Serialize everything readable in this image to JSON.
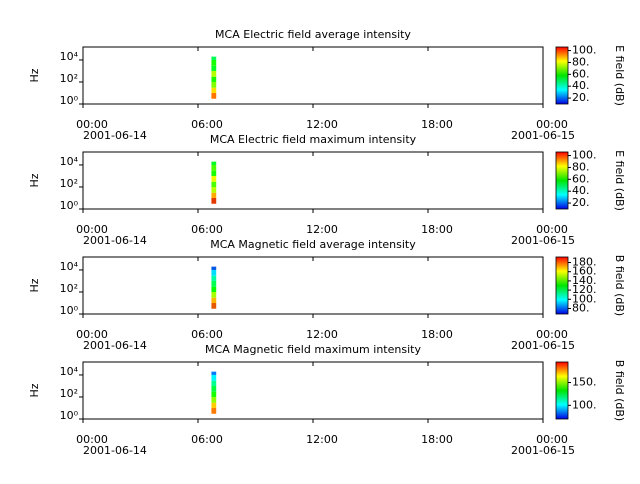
{
  "chart_data": [
    {
      "type": "spectrogram",
      "title": "MCA  Electric field average intensity",
      "ylabel": "Hz",
      "colorbar_label": "E field (dB)",
      "colormap": "rainbow",
      "log_y": true,
      "xlim": [
        0,
        24
      ],
      "xticks": [
        {
          "value": 0,
          "label": "00:00"
        },
        {
          "value": 6,
          "label": "06:00"
        },
        {
          "value": 12,
          "label": "12:00"
        },
        {
          "value": 18,
          "label": "18:00"
        },
        {
          "value": 24,
          "label": "00:00"
        }
      ],
      "x_date_labels": [
        {
          "value": 0,
          "label": "2001-06-14"
        },
        {
          "value": 24,
          "label": "2001-06-15"
        }
      ],
      "ylim": [
        1,
        150000
      ],
      "yticks": [
        {
          "value": 1,
          "label": "10⁰"
        },
        {
          "value": 100,
          "label": "10²"
        },
        {
          "value": 10000,
          "label": "10⁴"
        }
      ],
      "clim": [
        10,
        106
      ],
      "cticks": [
        {
          "value": 20,
          "label": "20."
        },
        {
          "value": 40,
          "label": "40."
        },
        {
          "value": 60,
          "label": "60."
        },
        {
          "value": 80,
          "label": "80."
        },
        {
          "value": 100,
          "label": "100."
        }
      ],
      "time_bins": [
        6.7,
        6.95
      ],
      "freq_bins": [
        3,
        10,
        30,
        100,
        300,
        1000,
        3000,
        10000,
        20000
      ],
      "values": [
        95,
        85,
        70,
        60,
        75,
        55,
        60,
        50
      ]
    },
    {
      "type": "spectrogram",
      "title": "MCA  Electric field maximum intensity",
      "ylabel": "Hz",
      "colorbar_label": "E field (dB)",
      "colormap": "rainbow",
      "log_y": true,
      "xlim": [
        0,
        24
      ],
      "xticks": [
        {
          "value": 0,
          "label": "00:00"
        },
        {
          "value": 6,
          "label": "06:00"
        },
        {
          "value": 12,
          "label": "12:00"
        },
        {
          "value": 18,
          "label": "18:00"
        },
        {
          "value": 24,
          "label": "00:00"
        }
      ],
      "x_date_labels": [
        {
          "value": 0,
          "label": "2001-06-14"
        },
        {
          "value": 24,
          "label": "2001-06-15"
        }
      ],
      "ylim": [
        1,
        150000
      ],
      "yticks": [
        {
          "value": 1,
          "label": "10⁰"
        },
        {
          "value": 100,
          "label": "10²"
        },
        {
          "value": 10000,
          "label": "10⁴"
        }
      ],
      "clim": [
        10,
        106
      ],
      "cticks": [
        {
          "value": 20,
          "label": "20."
        },
        {
          "value": 40,
          "label": "40."
        },
        {
          "value": 60,
          "label": "60."
        },
        {
          "value": 80,
          "label": "80."
        },
        {
          "value": 100,
          "label": "100."
        }
      ],
      "time_bins": [
        6.7,
        6.95
      ],
      "freq_bins": [
        3,
        10,
        30,
        100,
        300,
        1000,
        3000,
        10000,
        20000
      ],
      "values": [
        100,
        90,
        75,
        65,
        80,
        60,
        65,
        55
      ]
    },
    {
      "type": "spectrogram",
      "title": "MCA  Magnetic field average intensity",
      "ylabel": "Hz",
      "colorbar_label": "B field (dB)",
      "colormap": "rainbow",
      "log_y": true,
      "xlim": [
        0,
        24
      ],
      "xticks": [
        {
          "value": 0,
          "label": "00:00"
        },
        {
          "value": 6,
          "label": "06:00"
        },
        {
          "value": 12,
          "label": "12:00"
        },
        {
          "value": 18,
          "label": "18:00"
        },
        {
          "value": 24,
          "label": "00:00"
        }
      ],
      "x_date_labels": [
        {
          "value": 0,
          "label": "2001-06-14"
        },
        {
          "value": 24,
          "label": "2001-06-15"
        }
      ],
      "ylim": [
        1,
        150000
      ],
      "yticks": [
        {
          "value": 1,
          "label": "10⁰"
        },
        {
          "value": 100,
          "label": "10²"
        },
        {
          "value": 10000,
          "label": "10⁴"
        }
      ],
      "clim": [
        68,
        192
      ],
      "cticks": [
        {
          "value": 80,
          "label": "80."
        },
        {
          "value": 100,
          "label": "100."
        },
        {
          "value": 120,
          "label": "120."
        },
        {
          "value": 140,
          "label": "140."
        },
        {
          "value": 160,
          "label": "160."
        },
        {
          "value": 180,
          "label": "180."
        }
      ],
      "time_bins": [
        6.7,
        6.95
      ],
      "freq_bins": [
        3,
        10,
        30,
        100,
        300,
        1000,
        3000,
        10000,
        20000
      ],
      "values": [
        180,
        170,
        150,
        130,
        120,
        110,
        95,
        80
      ]
    },
    {
      "type": "spectrogram",
      "title": "MCA  Magnetic field maximum intensity",
      "ylabel": "Hz",
      "colorbar_label": "B field (dB)",
      "colormap": "rainbow",
      "log_y": true,
      "xlim": [
        0,
        24
      ],
      "xticks": [
        {
          "value": 0,
          "label": "00:00"
        },
        {
          "value": 6,
          "label": "06:00"
        },
        {
          "value": 12,
          "label": "12:00"
        },
        {
          "value": 18,
          "label": "18:00"
        },
        {
          "value": 24,
          "label": "00:00"
        }
      ],
      "x_date_labels": [
        {
          "value": 0,
          "label": "2001-06-14"
        },
        {
          "value": 24,
          "label": "2001-06-15"
        }
      ],
      "ylim": [
        1,
        150000
      ],
      "yticks": [
        {
          "value": 1,
          "label": "10⁰"
        },
        {
          "value": 100,
          "label": "10²"
        },
        {
          "value": 10000,
          "label": "10⁴"
        }
      ],
      "clim": [
        70,
        195
      ],
      "cticks": [
        {
          "value": 100,
          "label": "100."
        },
        {
          "value": 150,
          "label": "150."
        }
      ],
      "time_bins": [
        6.7,
        6.95
      ],
      "freq_bins": [
        3,
        10,
        30,
        100,
        300,
        1000,
        3000,
        10000,
        20000
      ],
      "values": [
        180,
        170,
        150,
        135,
        125,
        115,
        100,
        85
      ]
    }
  ]
}
